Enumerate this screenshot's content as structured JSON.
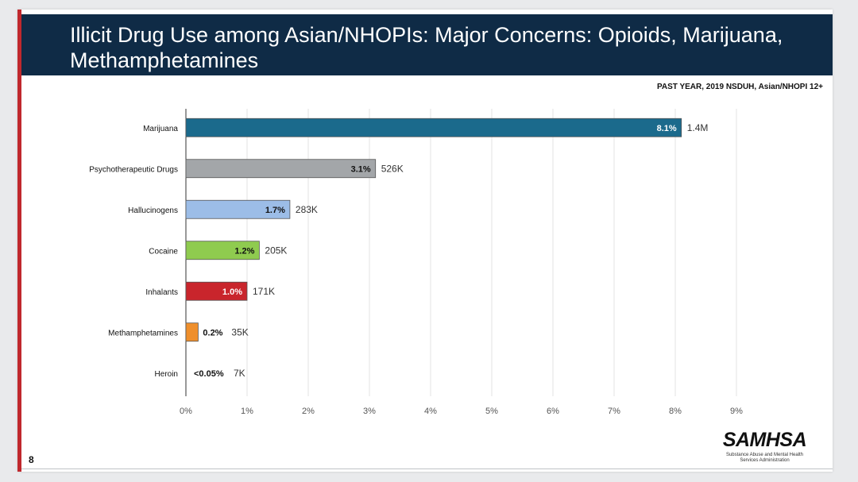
{
  "slide": {
    "title": "Illicit Drug Use among Asian/NHOPIs: Major Concerns: Opioids, Marijuana, Methamphetamines",
    "subtitle": "PAST YEAR, 2019 NSDUH, Asian/NHOPI 12+",
    "page_number": "8"
  },
  "logo": {
    "wordmark": "SAMHSA",
    "subtitle_line1": "Substance Abuse and Mental Health",
    "subtitle_line2": "Services Administration"
  },
  "chart_data": {
    "type": "bar",
    "orientation": "horizontal",
    "categories": [
      "Marijuana",
      "Psychotherapeutic Drugs",
      "Hallucinogens",
      "Cocaine",
      "Inhalants",
      "Methamphetamines",
      "Heroin"
    ],
    "values": [
      8.1,
      3.1,
      1.7,
      1.2,
      1.0,
      0.2,
      0.05
    ],
    "value_labels": [
      "8.1%",
      "3.1%",
      "1.7%",
      "1.2%",
      "1.0%",
      "0.2%",
      "<0.05%"
    ],
    "count_labels": [
      "1.4M",
      "526K",
      "283K",
      "205K",
      "171K",
      "35K",
      "7K"
    ],
    "colors": [
      "#1b6a8c",
      "#a3a6a9",
      "#9cbde7",
      "#8fcb4f",
      "#c9252c",
      "#ef8f2c",
      "#ffffff"
    ],
    "value_label_colors": [
      "#ffffff",
      "#111111",
      "#111111",
      "#111111",
      "#ffffff",
      "#111111",
      "#111111"
    ],
    "x_ticks": [
      "0%",
      "1%",
      "2%",
      "3%",
      "4%",
      "5%",
      "6%",
      "7%",
      "8%",
      "9%"
    ],
    "xlim": [
      0,
      9
    ],
    "grid": true
  }
}
